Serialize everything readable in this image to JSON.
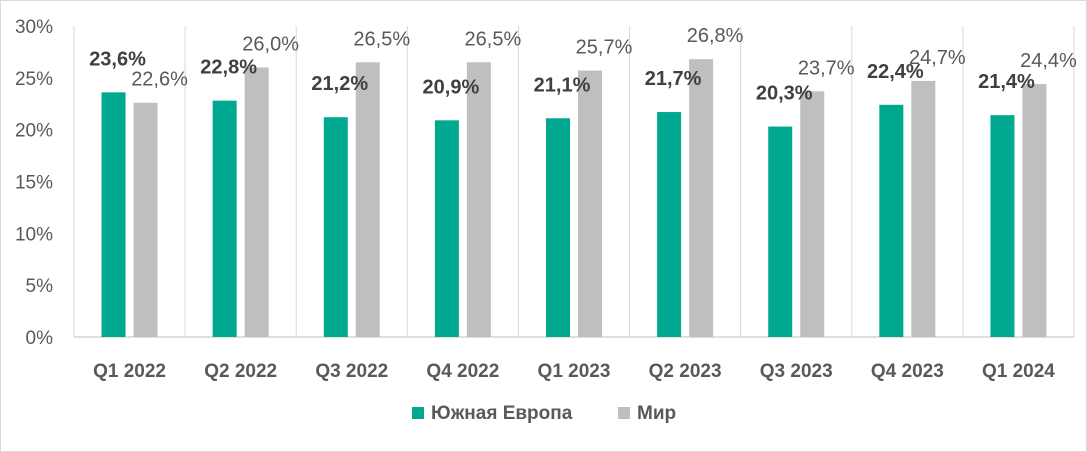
{
  "chart_data": {
    "type": "bar",
    "categories": [
      "Q1 2022",
      "Q2 2022",
      "Q3 2022",
      "Q4 2022",
      "Q1 2023",
      "Q2 2023",
      "Q3 2023",
      "Q4 2023",
      "Q1 2024"
    ],
    "series": [
      {
        "name": "Южная Европа",
        "color": "#00a88f",
        "values": [
          23.6,
          22.8,
          21.2,
          20.9,
          21.1,
          21.7,
          20.3,
          22.4,
          21.4
        ],
        "labels": [
          "23,6%",
          "22,8%",
          "21,2%",
          "20,9%",
          "21,1%",
          "21,7%",
          "20,3%",
          "22,4%",
          "21,4%"
        ]
      },
      {
        "name": "Мир",
        "color": "#bfbfbf",
        "values": [
          22.6,
          26.0,
          26.5,
          26.5,
          25.7,
          26.8,
          23.7,
          24.7,
          24.4
        ],
        "labels": [
          "22,6%",
          "26,0%",
          "26,5%",
          "26,5%",
          "25,7%",
          "26,8%",
          "23,7%",
          "24,7%",
          "24,4%"
        ]
      }
    ],
    "yticks": [
      0,
      5,
      10,
      15,
      20,
      25,
      30
    ],
    "ytick_labels": [
      "0%",
      "5%",
      "10%",
      "15%",
      "20%",
      "25%",
      "30%"
    ],
    "ylim": [
      0,
      30
    ],
    "grid": "vertical-category-separators",
    "legend": "bottom-center"
  }
}
